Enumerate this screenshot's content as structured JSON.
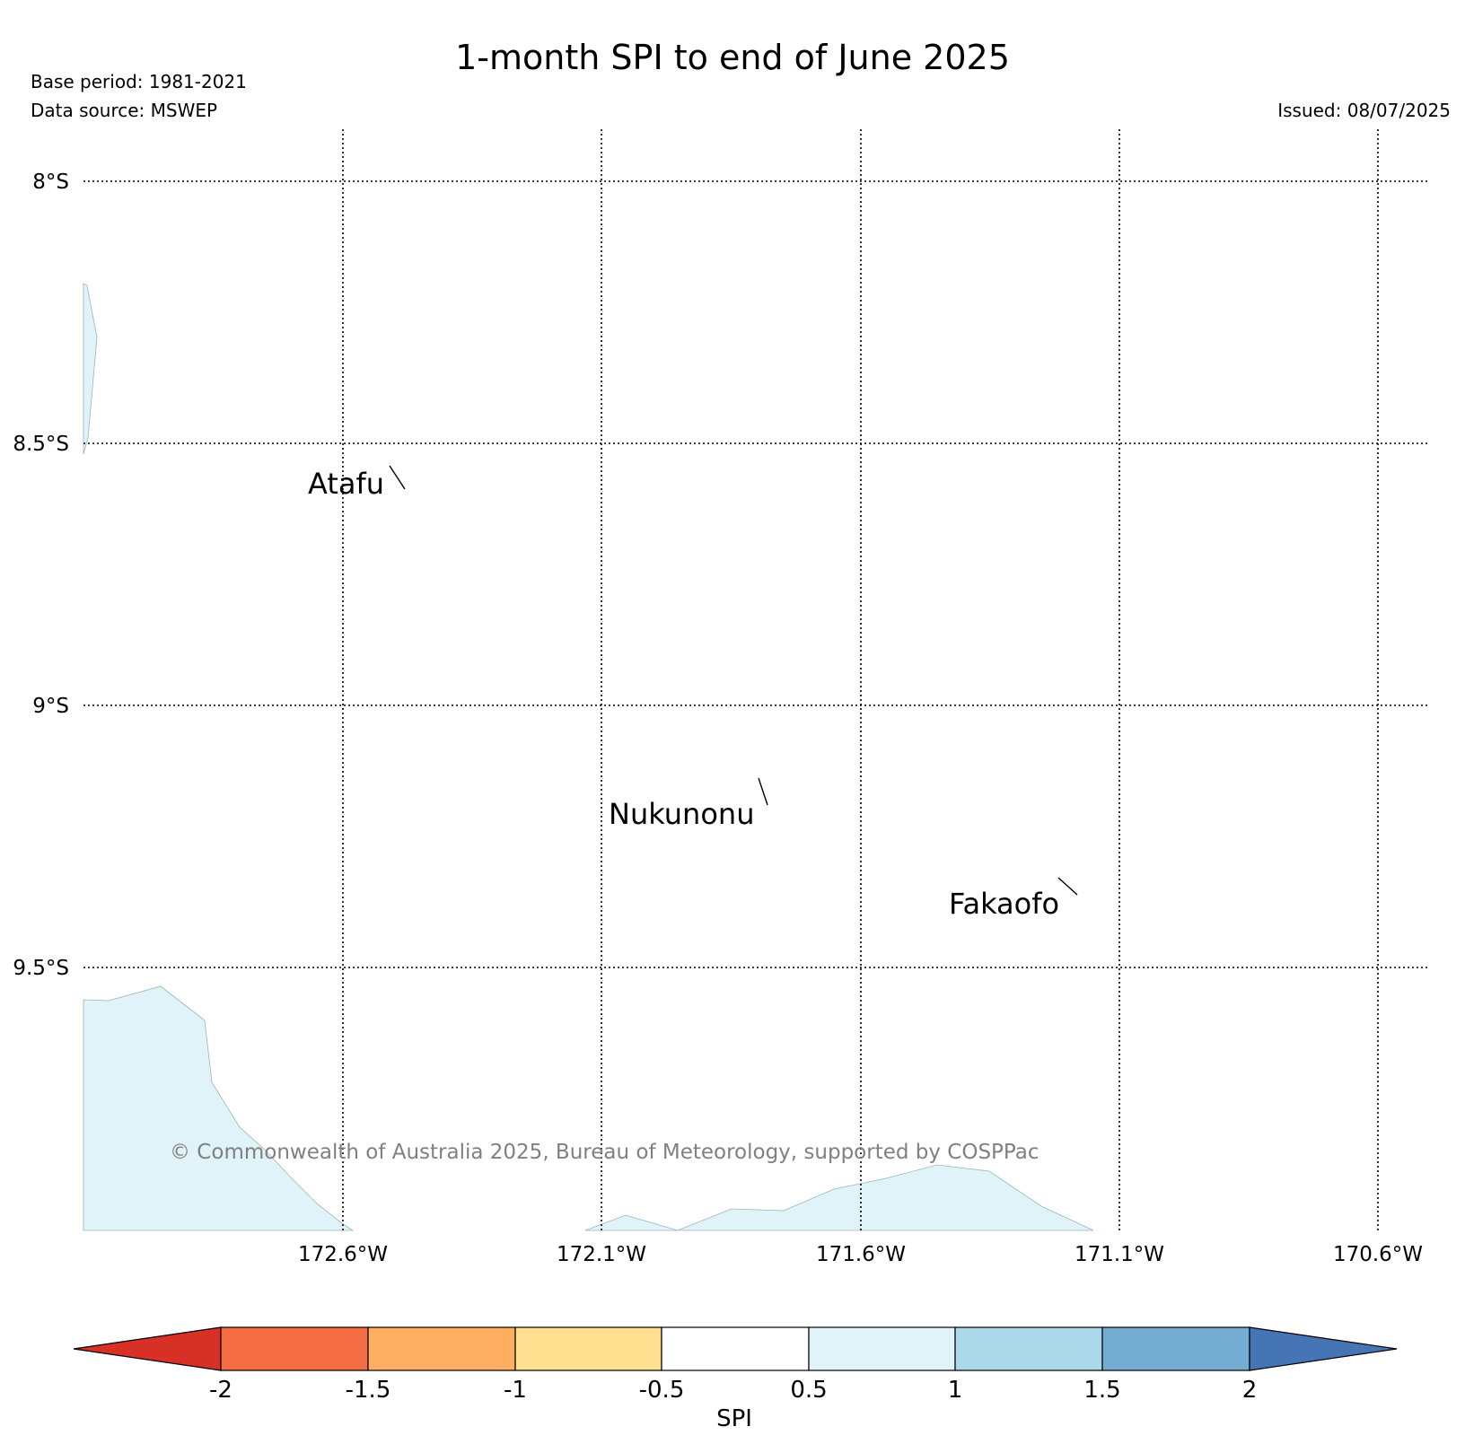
{
  "header": {
    "title": "1-month SPI to end of June 2025",
    "base_period": "Base period: 1981-2021",
    "data_source": "Data source: MSWEP",
    "issued": "Issued: 08/07/2025"
  },
  "map": {
    "latitude_labels": [
      "8°S",
      "8.5°S",
      "9°S",
      "9.5°S"
    ],
    "longitude_labels": [
      "172.6°W",
      "172.1°W",
      "171.6°W",
      "171.1°W",
      "170.6°W"
    ],
    "places": [
      {
        "name": "Atafu"
      },
      {
        "name": "Nukunonu"
      },
      {
        "name": "Fakaofo"
      }
    ],
    "copyright": "© Commonwealth of Australia 2025, Bureau of Meteorology, supported by COSPPac",
    "shaded_areas_class": "0.5 to 1",
    "shaded_color": "#e0f3f8"
  },
  "colorbar": {
    "label": "SPI",
    "ticks": [
      "-2",
      "-1.5",
      "-1",
      "-0.5",
      "0.5",
      "1",
      "1.5",
      "2"
    ],
    "colors": [
      "#d73027",
      "#f46d43",
      "#fdae61",
      "#fee090",
      "#ffffff",
      "#e0f3f8",
      "#abd9e9",
      "#74add1",
      "#4575b4"
    ]
  }
}
